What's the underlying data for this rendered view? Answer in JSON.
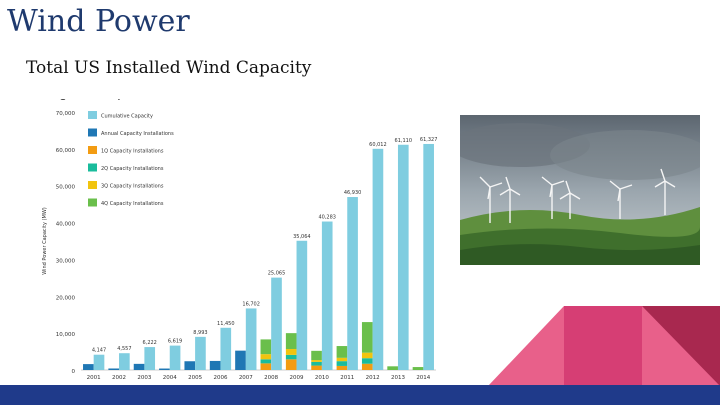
{
  "slide": {
    "title": "Wind Power",
    "subtitle": "Total US Installed Wind Capacity",
    "bullet": "Increasing"
  },
  "colors": {
    "title": "#1f3a6e",
    "cumulative": "#7fcde0",
    "annual": "#1f77b4",
    "q1": "#f39c12",
    "q2": "#1abc9c",
    "q3": "#f1c40f",
    "q4": "#6abf4b",
    "footer": "#1f3a8a",
    "accent_pink": "#e8608a",
    "accent_dark": "#a8284f"
  },
  "chart_data": {
    "type": "bar",
    "ylabel": "Wind Power Capacity (MW)",
    "ylim": [
      0,
      70000
    ],
    "ytick_labels": [
      "0",
      "10,000",
      "20,000",
      "30,000",
      "40,000",
      "50,000",
      "60,000",
      "70,000"
    ],
    "categories": [
      "2001",
      "2002",
      "2003",
      "2004",
      "2005",
      "2006",
      "2007",
      "2008",
      "2009",
      "2010",
      "2011",
      "2012",
      "2013",
      "2014"
    ],
    "legend": [
      "Cumulative Capacity",
      "Annual Capacity Installations",
      "1Q Capacity Installations",
      "2Q Capacity Installations",
      "3Q Capacity Installations",
      "4Q Capacity Installations"
    ],
    "series": [
      {
        "name": "Cumulative Capacity",
        "values": [
          4147,
          4557,
          6222,
          6619,
          8993,
          11450,
          16702,
          25065,
          35064,
          40283,
          46930,
          60012,
          61110,
          61327
        ],
        "labels": [
          "4,147",
          "4,557",
          "6,222",
          "6,619",
          "8,993",
          "11,450",
          "16,702",
          "25,065",
          "35,064",
          "40,283",
          "46,930",
          "60,012",
          "61,110",
          "61,327"
        ]
      },
      {
        "name": "Annual Capacity Installations",
        "values": [
          1600,
          410,
          1665,
          397,
          2374,
          2457,
          5252,
          0,
          0,
          0,
          0,
          0,
          0,
          0
        ]
      },
      {
        "name": "1Q Capacity Installations",
        "values": [
          0,
          0,
          0,
          0,
          0,
          0,
          0,
          1800,
          2900,
          1200,
          1100,
          1700,
          0,
          0
        ]
      },
      {
        "name": "2Q Capacity Installations",
        "values": [
          0,
          0,
          0,
          0,
          0,
          0,
          0,
          1100,
          1200,
          1000,
          1300,
          1500,
          0,
          0
        ]
      },
      {
        "name": "3Q Capacity Installations",
        "values": [
          0,
          0,
          0,
          0,
          0,
          0,
          0,
          1400,
          1600,
          500,
          900,
          1500,
          0,
          0
        ]
      },
      {
        "name": "4Q Capacity Installations",
        "values": [
          0,
          0,
          0,
          0,
          0,
          0,
          0,
          4000,
          4300,
          2500,
          3200,
          8300,
          1000,
          800
        ]
      }
    ]
  }
}
